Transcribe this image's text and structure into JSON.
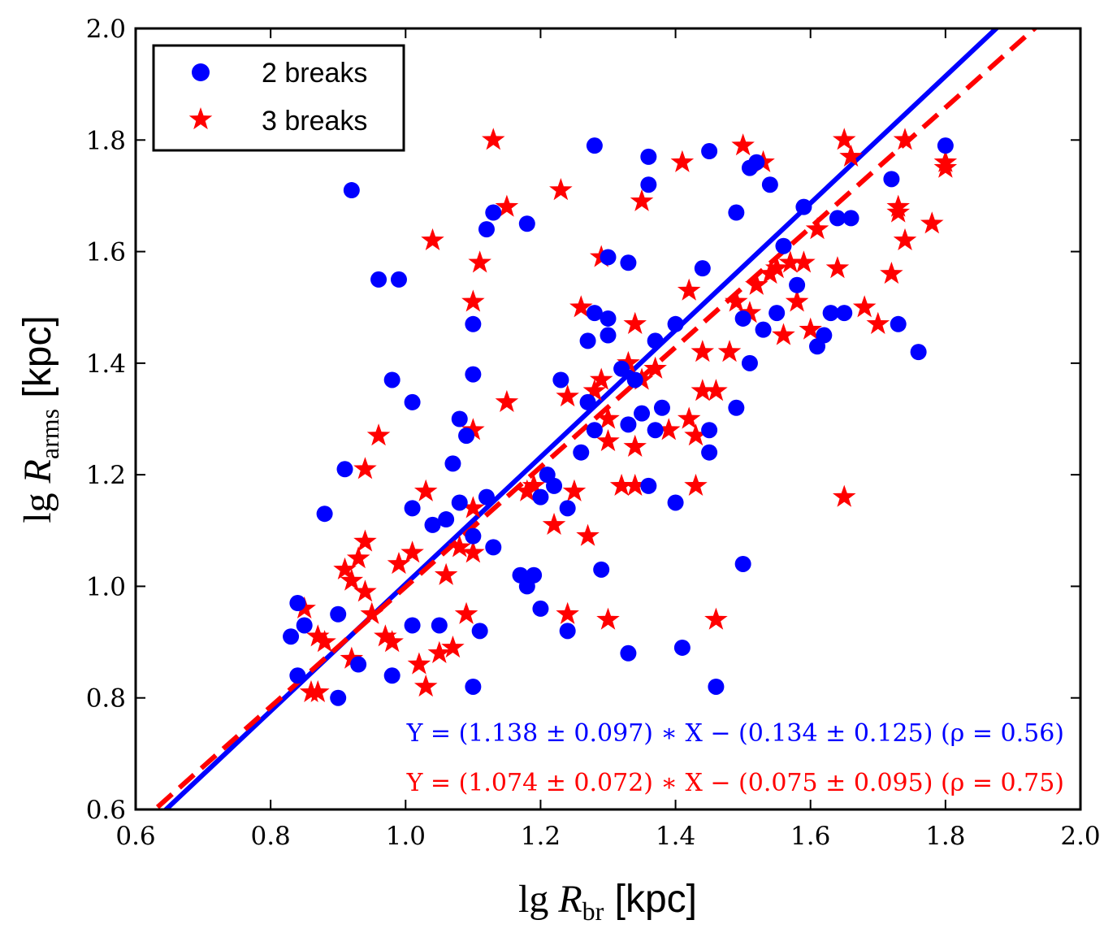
{
  "chart_data": {
    "type": "scatter",
    "xlabel": {
      "prefix": "lg ",
      "var": "R",
      "sub": "br",
      "unit": " [kpc]"
    },
    "ylabel": {
      "prefix": "lg ",
      "var": "R",
      "sub": "arms",
      "unit": " [kpc]"
    },
    "xlim": [
      0.6,
      2.0
    ],
    "ylim": [
      0.6,
      2.0
    ],
    "x_ticks": [
      "0.6",
      "0.8",
      "1.0",
      "1.2",
      "1.4",
      "1.6",
      "1.8",
      "2.0"
    ],
    "y_ticks": [
      "0.6",
      "0.8",
      "1.0",
      "1.2",
      "1.4",
      "1.6",
      "1.8",
      "2.0"
    ],
    "legend_position": "top-left",
    "grid": false,
    "series": [
      {
        "name": "2 breaks",
        "marker": "circle",
        "color": "#0000ff",
        "points": [
          [
            0.92,
            1.71
          ],
          [
            0.96,
            1.55
          ],
          [
            0.99,
            1.55
          ],
          [
            0.98,
            1.37
          ],
          [
            1.01,
            1.33
          ],
          [
            0.91,
            1.21
          ],
          [
            0.88,
            1.13
          ],
          [
            0.83,
            0.91
          ],
          [
            0.84,
            0.84
          ],
          [
            0.84,
            0.97
          ],
          [
            0.85,
            0.93
          ],
          [
            0.9,
            0.95
          ],
          [
            0.9,
            0.8
          ],
          [
            0.93,
            0.86
          ],
          [
            0.98,
            0.84
          ],
          [
            1.01,
            0.93
          ],
          [
            1.01,
            1.14
          ],
          [
            1.05,
            0.93
          ],
          [
            1.04,
            1.11
          ],
          [
            1.06,
            1.12
          ],
          [
            1.07,
            1.22
          ],
          [
            1.08,
            1.3
          ],
          [
            1.08,
            1.15
          ],
          [
            1.09,
            1.27
          ],
          [
            1.1,
            1.38
          ],
          [
            1.1,
            1.47
          ],
          [
            1.1,
            1.09
          ],
          [
            1.1,
            0.82
          ],
          [
            1.11,
            0.92
          ],
          [
            1.12,
            1.16
          ],
          [
            1.13,
            1.07
          ],
          [
            1.12,
            1.64
          ],
          [
            1.13,
            1.67
          ],
          [
            1.18,
            1.65
          ],
          [
            1.17,
            1.02
          ],
          [
            1.18,
            1.0
          ],
          [
            1.19,
            1.02
          ],
          [
            1.2,
            0.96
          ],
          [
            1.2,
            1.16
          ],
          [
            1.21,
            1.2
          ],
          [
            1.22,
            1.18
          ],
          [
            1.23,
            1.37
          ],
          [
            1.24,
            1.14
          ],
          [
            1.24,
            0.92
          ],
          [
            1.26,
            1.24
          ],
          [
            1.27,
            1.44
          ],
          [
            1.27,
            1.33
          ],
          [
            1.28,
            1.49
          ],
          [
            1.28,
            1.28
          ],
          [
            1.28,
            1.79
          ],
          [
            1.29,
            1.03
          ],
          [
            1.3,
            1.45
          ],
          [
            1.3,
            1.48
          ],
          [
            1.3,
            1.59
          ],
          [
            1.32,
            1.39
          ],
          [
            1.33,
            1.58
          ],
          [
            1.33,
            1.29
          ],
          [
            1.33,
            0.88
          ],
          [
            1.34,
            1.37
          ],
          [
            1.35,
            1.31
          ],
          [
            1.36,
            1.18
          ],
          [
            1.36,
            1.72
          ],
          [
            1.36,
            1.77
          ],
          [
            1.37,
            1.44
          ],
          [
            1.37,
            1.28
          ],
          [
            1.38,
            1.32
          ],
          [
            1.4,
            1.15
          ],
          [
            1.4,
            1.47
          ],
          [
            1.41,
            0.89
          ],
          [
            1.44,
            1.57
          ],
          [
            1.45,
            1.28
          ],
          [
            1.45,
            1.24
          ],
          [
            1.45,
            1.78
          ],
          [
            1.46,
            0.82
          ],
          [
            1.49,
            1.67
          ],
          [
            1.49,
            1.32
          ],
          [
            1.5,
            1.04
          ],
          [
            1.5,
            1.48
          ],
          [
            1.51,
            1.4
          ],
          [
            1.51,
            1.75
          ],
          [
            1.52,
            1.76
          ],
          [
            1.53,
            1.46
          ],
          [
            1.54,
            1.72
          ],
          [
            1.55,
            1.49
          ],
          [
            1.56,
            1.61
          ],
          [
            1.58,
            1.54
          ],
          [
            1.59,
            1.68
          ],
          [
            1.61,
            1.43
          ],
          [
            1.62,
            1.45
          ],
          [
            1.63,
            1.49
          ],
          [
            1.64,
            1.66
          ],
          [
            1.65,
            1.49
          ],
          [
            1.66,
            1.66
          ],
          [
            1.72,
            1.73
          ],
          [
            1.73,
            1.47
          ],
          [
            1.76,
            1.42
          ],
          [
            1.8,
            1.79
          ]
        ]
      },
      {
        "name": "3 breaks",
        "marker": "star",
        "color": "#ff0000",
        "points": [
          [
            1.13,
            1.8
          ],
          [
            1.04,
            1.62
          ],
          [
            1.15,
            1.68
          ],
          [
            1.11,
            1.58
          ],
          [
            1.1,
            1.51
          ],
          [
            1.15,
            1.33
          ],
          [
            0.96,
            1.27
          ],
          [
            0.94,
            1.21
          ],
          [
            1.1,
            1.28
          ],
          [
            1.03,
            1.17
          ],
          [
            1.1,
            1.14
          ],
          [
            0.85,
            0.96
          ],
          [
            0.87,
            0.91
          ],
          [
            0.88,
            0.9
          ],
          [
            0.86,
            0.81
          ],
          [
            0.87,
            0.81
          ],
          [
            0.92,
            0.87
          ],
          [
            0.91,
            1.03
          ],
          [
            0.93,
            1.05
          ],
          [
            0.94,
            1.08
          ],
          [
            0.92,
            1.01
          ],
          [
            0.94,
            0.99
          ],
          [
            0.95,
            0.95
          ],
          [
            0.97,
            0.91
          ],
          [
            0.98,
            0.9
          ],
          [
            0.99,
            1.04
          ],
          [
            1.01,
            1.06
          ],
          [
            1.02,
            0.86
          ],
          [
            1.03,
            0.82
          ],
          [
            1.05,
            0.88
          ],
          [
            1.06,
            1.02
          ],
          [
            1.07,
            0.89
          ],
          [
            1.08,
            1.07
          ],
          [
            1.09,
            0.95
          ],
          [
            1.1,
            1.06
          ],
          [
            1.18,
            1.17
          ],
          [
            1.19,
            1.18
          ],
          [
            1.22,
            1.11
          ],
          [
            1.24,
            1.34
          ],
          [
            1.25,
            1.17
          ],
          [
            1.24,
            0.95
          ],
          [
            1.23,
            1.71
          ],
          [
            1.26,
            1.5
          ],
          [
            1.27,
            1.09
          ],
          [
            1.28,
            1.35
          ],
          [
            1.29,
            1.59
          ],
          [
            1.29,
            1.37
          ],
          [
            1.3,
            1.3
          ],
          [
            1.3,
            1.26
          ],
          [
            1.3,
            0.94
          ],
          [
            1.32,
            1.18
          ],
          [
            1.33,
            1.4
          ],
          [
            1.34,
            1.47
          ],
          [
            1.34,
            1.25
          ],
          [
            1.34,
            1.18
          ],
          [
            1.35,
            1.37
          ],
          [
            1.35,
            1.69
          ],
          [
            1.37,
            1.39
          ],
          [
            1.39,
            1.28
          ],
          [
            1.41,
            1.76
          ],
          [
            1.42,
            1.53
          ],
          [
            1.42,
            1.3
          ],
          [
            1.43,
            1.27
          ],
          [
            1.43,
            1.18
          ],
          [
            1.44,
            1.42
          ],
          [
            1.44,
            1.35
          ],
          [
            1.46,
            1.35
          ],
          [
            1.46,
            0.94
          ],
          [
            1.48,
            1.42
          ],
          [
            1.49,
            1.51
          ],
          [
            1.5,
            1.79
          ],
          [
            1.51,
            1.49
          ],
          [
            1.53,
            1.76
          ],
          [
            1.52,
            1.54
          ],
          [
            1.54,
            1.56
          ],
          [
            1.55,
            1.57
          ],
          [
            1.56,
            1.45
          ],
          [
            1.57,
            1.58
          ],
          [
            1.58,
            1.51
          ],
          [
            1.59,
            1.58
          ],
          [
            1.6,
            1.46
          ],
          [
            1.61,
            1.64
          ],
          [
            1.64,
            1.57
          ],
          [
            1.65,
            1.8
          ],
          [
            1.66,
            1.77
          ],
          [
            1.65,
            1.16
          ],
          [
            1.68,
            1.5
          ],
          [
            1.7,
            1.47
          ],
          [
            1.72,
            1.56
          ],
          [
            1.73,
            1.68
          ],
          [
            1.73,
            1.67
          ],
          [
            1.74,
            1.62
          ],
          [
            1.74,
            1.8
          ],
          [
            1.78,
            1.65
          ],
          [
            1.8,
            1.75
          ],
          [
            1.8,
            1.76
          ]
        ]
      }
    ],
    "fits": [
      {
        "color": "#0000ff",
        "style": "solid",
        "slope": 1.138,
        "intercept": -0.134,
        "label": "Y = (1.138 ± 0.097) ∗ X − (0.134 ± 0.125) (ρ = 0.56)"
      },
      {
        "color": "#ff0000",
        "style": "dashed",
        "slope": 1.074,
        "intercept": -0.075,
        "label": "Y = (1.074 ± 0.072) ∗ X − (0.075 ± 0.095) (ρ = 0.75)"
      }
    ]
  }
}
